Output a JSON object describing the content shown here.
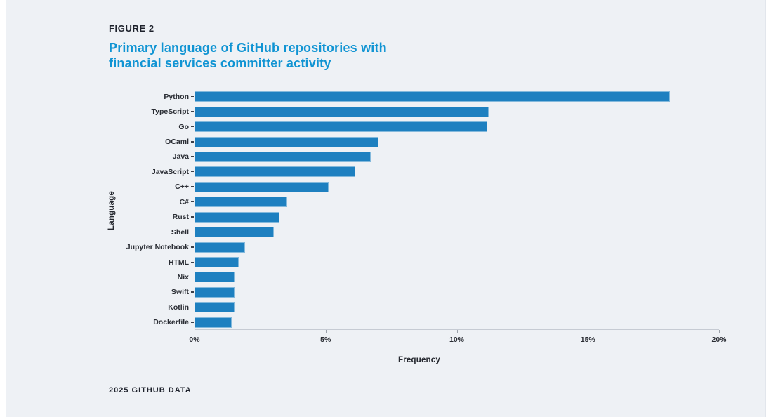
{
  "figure": {
    "label": "FIGURE 2",
    "title_line1": "Primary language of GitHub repositories with",
    "title_line2": "financial services committer activity",
    "footer": "2025 GITHUB DATA"
  },
  "colors": {
    "bar_fill": "#1e80c0",
    "title_blue": "#1094d3",
    "background": "#eef1f5",
    "dark_text": "#1d212b"
  },
  "chart_data": {
    "type": "bar",
    "orientation": "horizontal",
    "title": "Primary language of GitHub repositories with financial services committer activity",
    "xlabel": "Frequency",
    "ylabel": "Language",
    "xlim": [
      0,
      20
    ],
    "x_tick_labels": [
      "0%",
      "5%",
      "10%",
      "15%",
      "20%"
    ],
    "x_tick_values": [
      0,
      5,
      10,
      15,
      20
    ],
    "grid": false,
    "legend": false,
    "categories": [
      "Python",
      "TypeScript",
      "Go",
      "OCaml",
      "Java",
      "JavaScript",
      "C++",
      "C#",
      "Rust",
      "Shell",
      "Jupyter Notebook",
      "HTML",
      "Nix",
      "Swift",
      "Kotlin",
      "Dockerfile"
    ],
    "values": [
      18.1,
      11.2,
      11.15,
      7.0,
      6.7,
      6.1,
      5.1,
      3.5,
      3.2,
      3.0,
      1.9,
      1.65,
      1.5,
      1.5,
      1.5,
      1.4
    ]
  }
}
